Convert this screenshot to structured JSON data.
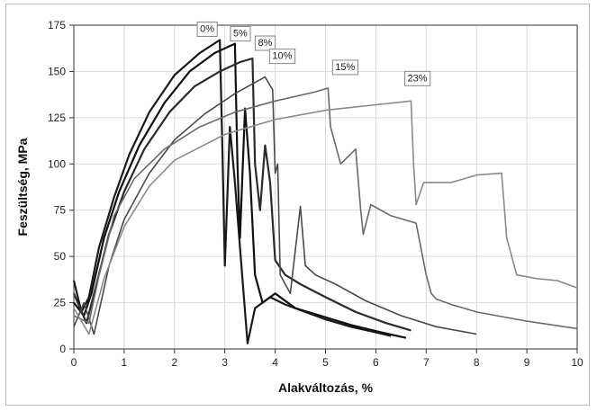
{
  "chart_data": {
    "type": "line",
    "xlabel": "Alakváltozás, %",
    "ylabel": "Feszültség, MPa",
    "xlim": [
      0,
      10
    ],
    "ylim": [
      0,
      175
    ],
    "xticks": [
      "0",
      "1",
      "2",
      "3",
      "4",
      "5",
      "6",
      "7",
      "8",
      "9",
      "10"
    ],
    "yticks": [
      "0",
      "25",
      "50",
      "75",
      "100",
      "125",
      "150",
      "175"
    ],
    "grid": true,
    "colors": {
      "dark": "#1a1a1a",
      "mid": "#555555",
      "light": "#8a8a8a",
      "grid": "#d9d9d9"
    },
    "series": [
      {
        "name": "0%",
        "color": "#1a1a1a",
        "x": [
          0,
          0.15,
          0.3,
          0.5,
          0.8,
          1.1,
          1.5,
          2.0,
          2.5,
          2.9,
          2.95,
          3.0,
          3.1,
          3.2,
          3.3,
          3.45,
          3.6,
          3.9,
          4.2,
          4.6,
          5.0,
          5.5,
          6.0,
          6.3
        ],
        "y": [
          37,
          20,
          28,
          55,
          82,
          105,
          128,
          148,
          160,
          167,
          110,
          45,
          120,
          90,
          55,
          3,
          22,
          28,
          24,
          20,
          16,
          12,
          9,
          7
        ]
      },
      {
        "name": "5%",
        "color": "#111111",
        "x": [
          0,
          0.2,
          0.35,
          0.6,
          0.9,
          1.3,
          1.8,
          2.3,
          2.8,
          3.2,
          3.25,
          3.3,
          3.4,
          3.5,
          3.6,
          3.75,
          4.0,
          4.4,
          4.9,
          5.5,
          6.1,
          6.6
        ],
        "y": [
          25,
          18,
          30,
          60,
          85,
          110,
          133,
          150,
          160,
          165,
          100,
          60,
          130,
          95,
          40,
          25,
          30,
          22,
          18,
          13,
          9,
          6
        ]
      },
      {
        "name": "8%",
        "color": "#2b2b2b",
        "x": [
          0,
          0.25,
          0.45,
          0.7,
          1.0,
          1.4,
          1.9,
          2.4,
          2.9,
          3.3,
          3.55,
          3.6,
          3.7,
          3.8,
          3.9,
          4.0,
          4.2,
          4.5,
          5.0,
          5.6,
          6.2,
          6.7
        ],
        "y": [
          30,
          14,
          35,
          62,
          85,
          108,
          128,
          142,
          150,
          155,
          157,
          100,
          75,
          110,
          90,
          48,
          40,
          35,
          28,
          20,
          14,
          10
        ]
      },
      {
        "name": "10%",
        "color": "#4a4a4a",
        "x": [
          0,
          0.2,
          0.4,
          0.7,
          1.0,
          1.5,
          2.0,
          2.6,
          3.2,
          3.8,
          3.95,
          4.0,
          4.05,
          4.1,
          4.3,
          4.5,
          4.6,
          4.8,
          5.2,
          5.8,
          6.5,
          7.2,
          8.0
        ],
        "y": [
          12,
          25,
          8,
          45,
          70,
          95,
          113,
          127,
          138,
          147,
          140,
          95,
          100,
          40,
          30,
          77,
          45,
          40,
          35,
          26,
          18,
          12,
          8
        ]
      },
      {
        "name": "15%",
        "color": "#6a6a6a",
        "x": [
          0,
          0.3,
          0.5,
          0.8,
          1.2,
          1.8,
          2.5,
          3.2,
          4.0,
          4.8,
          5.05,
          5.1,
          5.3,
          5.6,
          5.7,
          5.75,
          5.9,
          6.3,
          6.8,
          7.0,
          7.1,
          7.2,
          7.5,
          8.0,
          9.0,
          10.0
        ],
        "y": [
          18,
          14,
          40,
          72,
          92,
          108,
          120,
          128,
          134,
          139,
          141,
          120,
          100,
          108,
          75,
          62,
          78,
          72,
          68,
          40,
          30,
          27,
          24,
          20,
          15,
          11
        ]
      },
      {
        "name": "23%",
        "color": "#8a8a8a",
        "x": [
          0,
          0.3,
          0.6,
          1.0,
          1.5,
          2.0,
          3.0,
          4.0,
          5.0,
          6.0,
          6.7,
          6.75,
          6.8,
          6.95,
          7.5,
          8.0,
          8.5,
          8.6,
          8.8,
          9.2,
          9.6,
          10.0
        ],
        "y": [
          22,
          8,
          38,
          66,
          88,
          102,
          116,
          124,
          129,
          132,
          134,
          100,
          78,
          90,
          90,
          94,
          95,
          60,
          40,
          38,
          37,
          33
        ]
      }
    ]
  }
}
